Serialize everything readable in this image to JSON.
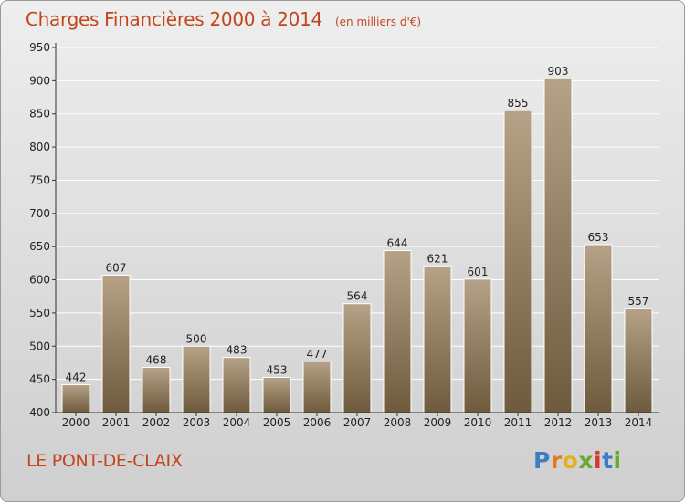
{
  "header": {
    "title": "Charges Financières 2000 à 2014",
    "subtitle": "(en milliers d'€)"
  },
  "footer": {
    "commune": "LE PONT-DE-CLAIX",
    "brand": "Proxiti"
  },
  "colors": {
    "title": "#c2461d",
    "bar_top": "#b5a287",
    "bar_bottom": "#6e5a3d",
    "axis": "#333333",
    "gridline": "#ffffff",
    "brand_letters": [
      "#3a7fc4",
      "#e07a1e",
      "#e2b21c",
      "#6aa832",
      "#d43a2a",
      "#3a7fc4",
      "#6aa832"
    ]
  },
  "chart_data": {
    "type": "bar",
    "title": "Charges Financières 2000 à 2014",
    "subtitle": "(en milliers d'€)",
    "categories": [
      "2000",
      "2001",
      "2002",
      "2003",
      "2004",
      "2005",
      "2006",
      "2007",
      "2008",
      "2009",
      "2010",
      "2011",
      "2012",
      "2013",
      "2014"
    ],
    "values": [
      442,
      607,
      468,
      500,
      483,
      453,
      477,
      564,
      644,
      621,
      601,
      855,
      903,
      653,
      557
    ],
    "ylim": [
      400,
      950
    ],
    "yticks": [
      400,
      450,
      500,
      550,
      600,
      650,
      700,
      750,
      800,
      850,
      900,
      950
    ],
    "grid": true,
    "data_labels": true
  }
}
